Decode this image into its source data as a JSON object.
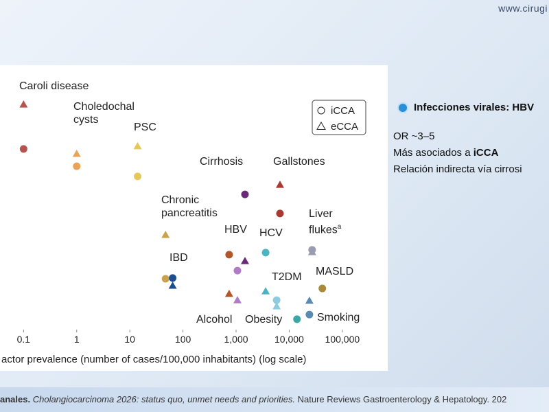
{
  "site": "www.cirugi",
  "side_panel": {
    "heading": "Infecciones virales: HBV",
    "lines": [
      "OR ~3–5",
      [
        "Más asociados a ",
        "iCCA"
      ],
      "Relación indirecta vía cirrosi"
    ]
  },
  "footer": {
    "author": "anales.",
    "title": "Cholangiocarcinoma 2026: status quo, unmet needs and priorities.",
    "journal": "Nature Reviews Gastroenterology & Hepatology. 202"
  },
  "chart_data": {
    "type": "scatter",
    "x_label": "actor prevalence (number of cases/100,000 inhabitants) (log scale)",
    "categories": [
      "Caroli disease",
      "Choledochal cysts",
      "PSC",
      "Chronic pancreatitis",
      "IBD",
      "HBV",
      "Alcohol",
      "Cirrhosis",
      "HCV",
      "Gallstones",
      "T2DM",
      "Obesity",
      "Liver flukes",
      "MASLD",
      "Smoking"
    ],
    "category_notes": [
      null,
      null,
      null,
      null,
      null,
      null,
      null,
      null,
      null,
      null,
      null,
      null,
      "a",
      null,
      null
    ],
    "colors": [
      "#b5534f",
      "#e8a55a",
      "#e6c85a",
      "#c9a24e",
      "#1f4e8c",
      "#b5562a",
      "#b07cc6",
      "#6b2a78",
      "#4ab3c4",
      "#a83a32",
      "#8ecae0",
      "#3aa6a6",
      "#9a9ab0",
      "#a88a3a",
      "#5a8ab0"
    ],
    "x": [
      0.1,
      1,
      14,
      47,
      64,
      740,
      1060,
      1470,
      3600,
      6700,
      5800,
      14000,
      27000,
      42000,
      24000
    ],
    "series": [
      {
        "name": "iCCA",
        "marker": "circle",
        "values": [
          71.1,
          64.3,
          60.3,
          20.0,
          20.3,
          29.5,
          23.2,
          53.2,
          30.3,
          45.7,
          11.6,
          4.1,
          31.4,
          16.2,
          5.9
        ]
      },
      {
        "name": "eCCA",
        "marker": "triangle",
        "values": [
          88.6,
          69.2,
          72.2,
          37.3,
          17.3,
          14.1,
          11.6,
          27.0,
          15.1,
          57.0,
          9.2,
          null,
          30.5,
          null,
          11.4
        ]
      }
    ],
    "xscale": "log",
    "xlim": [
      0.036,
      340000
    ],
    "xticks": [
      0.1,
      1,
      10,
      100,
      {
        "value": 1000,
        "label": "1,000"
      },
      {
        "value": 10000,
        "label": "10,000"
      },
      {
        "value": 100000,
        "label": "100,000"
      }
    ],
    "ylim": [
      0,
      100
    ],
    "legend": "upper right"
  }
}
